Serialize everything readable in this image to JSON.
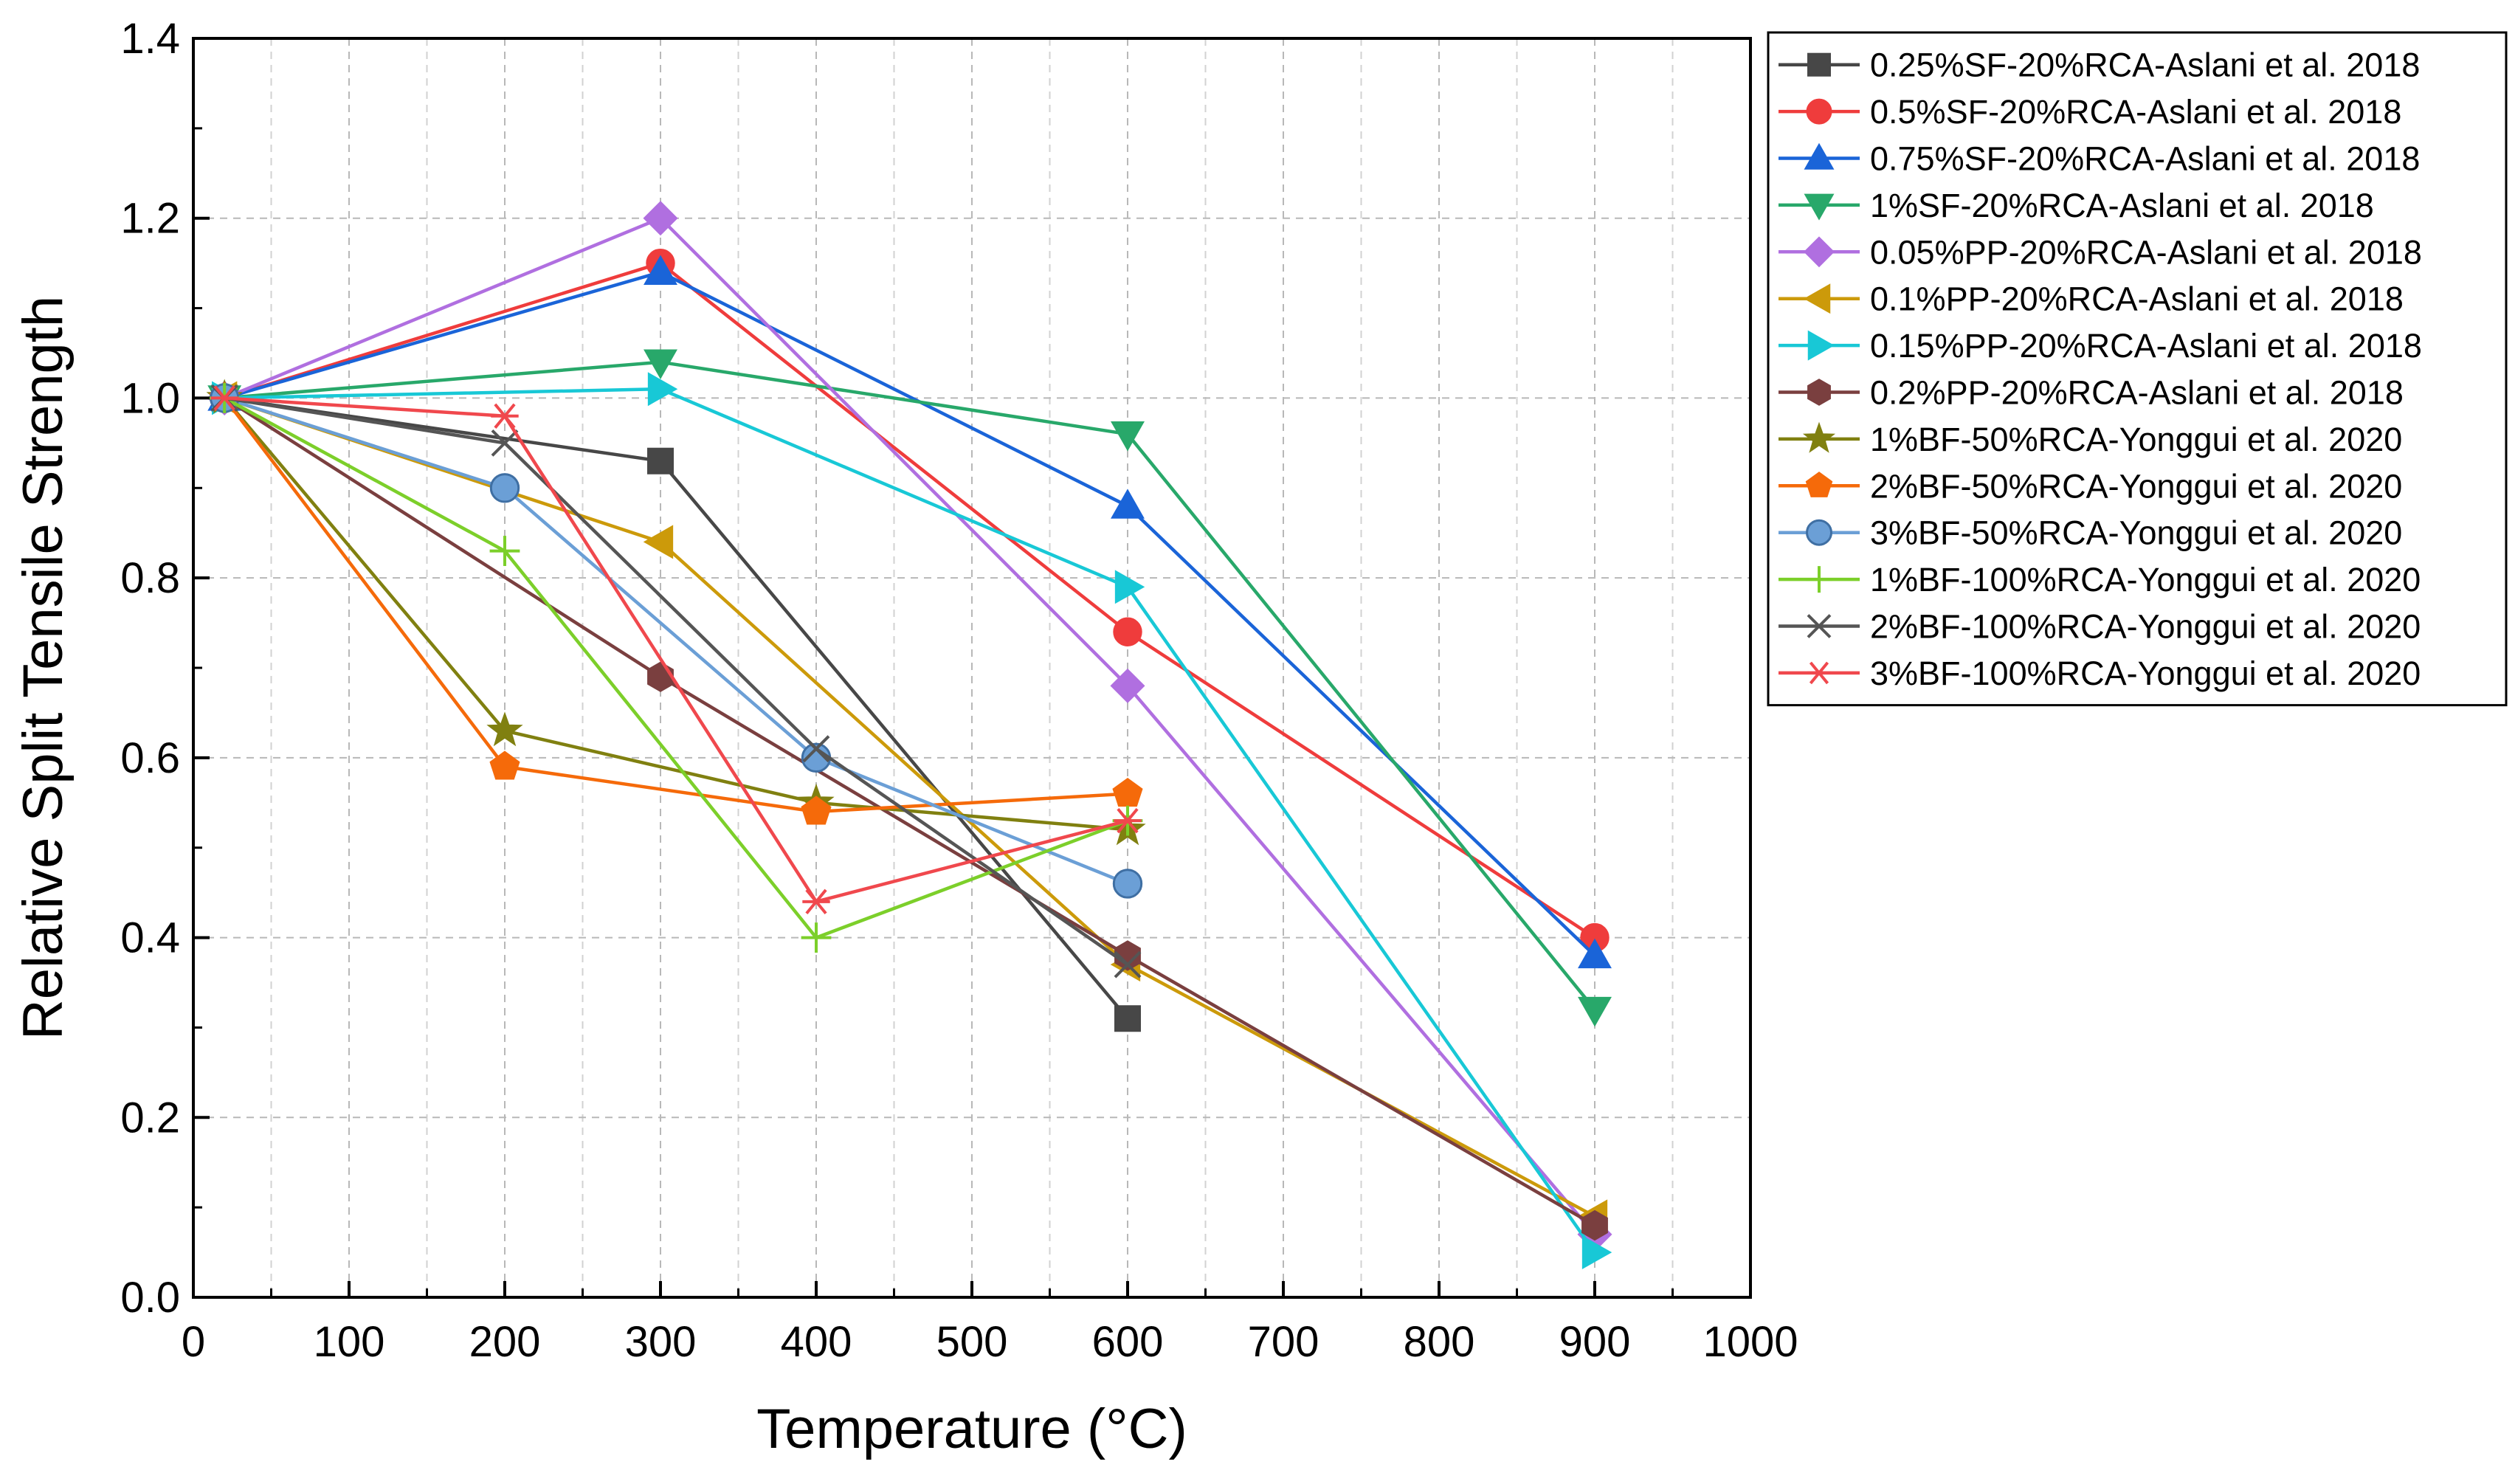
{
  "chart_data": {
    "type": "line",
    "title": "",
    "xlabel": "Temperature (°C)",
    "ylabel": "Relative Split Tensile Strength",
    "xlim": [
      0,
      1000
    ],
    "ylim": [
      0,
      1.4
    ],
    "xticks": [
      "0",
      "100",
      "200",
      "300",
      "400",
      "500",
      "600",
      "700",
      "800",
      "900",
      "1000"
    ],
    "yticks": [
      "0.0",
      "0.2",
      "0.4",
      "0.6",
      "0.8",
      "1.0",
      "1.2",
      "1.4"
    ],
    "grid": true,
    "legend_position": "right",
    "series": [
      {
        "name": "0.25%SF-20%RCA-Aslani et al. 2018",
        "color": "#474747",
        "marker": "square",
        "points": [
          [
            20,
            1.0
          ],
          [
            300,
            0.93
          ],
          [
            600,
            0.31
          ]
        ]
      },
      {
        "name": "0.5%SF-20%RCA-Aslani et al. 2018",
        "color": "#ef3c3c",
        "marker": "circle",
        "points": [
          [
            20,
            1.0
          ],
          [
            300,
            1.15
          ],
          [
            600,
            0.74
          ],
          [
            900,
            0.4
          ]
        ]
      },
      {
        "name": "0.75%SF-20%RCA-Aslani et al. 2018",
        "color": "#1a64d8",
        "marker": "triangle-up",
        "points": [
          [
            20,
            1.0
          ],
          [
            300,
            1.14
          ],
          [
            600,
            0.88
          ],
          [
            900,
            0.38
          ]
        ]
      },
      {
        "name": "1%SF-20%RCA-Aslani et al. 2018",
        "color": "#28a86a",
        "marker": "triangle-down",
        "points": [
          [
            20,
            1.0
          ],
          [
            300,
            1.04
          ],
          [
            600,
            0.96
          ],
          [
            900,
            0.32
          ]
        ]
      },
      {
        "name": "0.05%PP-20%RCA-Aslani et al. 2018",
        "color": "#b06fe0",
        "marker": "diamond",
        "points": [
          [
            20,
            1.0
          ],
          [
            300,
            1.2
          ],
          [
            600,
            0.68
          ],
          [
            900,
            0.07
          ]
        ]
      },
      {
        "name": "0.1%PP-20%RCA-Aslani et al. 2018",
        "color": "#cc9a0a",
        "marker": "triangle-left",
        "points": [
          [
            20,
            1.0
          ],
          [
            300,
            0.84
          ],
          [
            600,
            0.37
          ],
          [
            900,
            0.09
          ]
        ]
      },
      {
        "name": "0.15%PP-20%RCA-Aslani et al. 2018",
        "color": "#18c8d6",
        "marker": "triangle-right",
        "points": [
          [
            20,
            1.0
          ],
          [
            300,
            1.01
          ],
          [
            600,
            0.79
          ],
          [
            900,
            0.05
          ]
        ]
      },
      {
        "name": "0.2%PP-20%RCA-Aslani et al. 2018",
        "color": "#7a3f3f",
        "marker": "hexagon",
        "points": [
          [
            20,
            1.0
          ],
          [
            300,
            0.69
          ],
          [
            600,
            0.38
          ],
          [
            900,
            0.08
          ]
        ]
      },
      {
        "name": "1%BF-50%RCA-Yonggui et al. 2020",
        "color": "#808010",
        "marker": "star",
        "points": [
          [
            20,
            1.0
          ],
          [
            200,
            0.63
          ],
          [
            400,
            0.55
          ],
          [
            600,
            0.52
          ]
        ]
      },
      {
        "name": "2%BF-50%RCA-Yonggui et al. 2020",
        "color": "#f56a0a",
        "marker": "pentagon",
        "points": [
          [
            20,
            1.0
          ],
          [
            200,
            0.59
          ],
          [
            400,
            0.54
          ],
          [
            600,
            0.56
          ]
        ]
      },
      {
        "name": "3%BF-50%RCA-Yonggui et al. 2020",
        "color": "#6b9fd6",
        "marker": "sphere",
        "points": [
          [
            20,
            1.0
          ],
          [
            200,
            0.9
          ],
          [
            400,
            0.6
          ],
          [
            600,
            0.46
          ]
        ]
      },
      {
        "name": "1%BF-100%RCA-Yonggui et al. 2020",
        "color": "#7ccf2a",
        "marker": "plus",
        "points": [
          [
            20,
            1.0
          ],
          [
            200,
            0.83
          ],
          [
            400,
            0.4
          ],
          [
            600,
            0.53
          ]
        ]
      },
      {
        "name": "2%BF-100%RCA-Yonggui et al. 2020",
        "color": "#555555",
        "marker": "x",
        "points": [
          [
            20,
            1.0
          ],
          [
            200,
            0.95
          ],
          [
            400,
            0.61
          ],
          [
            600,
            0.37
          ]
        ]
      },
      {
        "name": "3%BF-100%RCA-Yonggui et al. 2020",
        "color": "#f0484d",
        "marker": "asterisk",
        "points": [
          [
            20,
            1.0
          ],
          [
            200,
            0.98
          ],
          [
            400,
            0.44
          ],
          [
            600,
            0.53
          ]
        ]
      }
    ]
  }
}
